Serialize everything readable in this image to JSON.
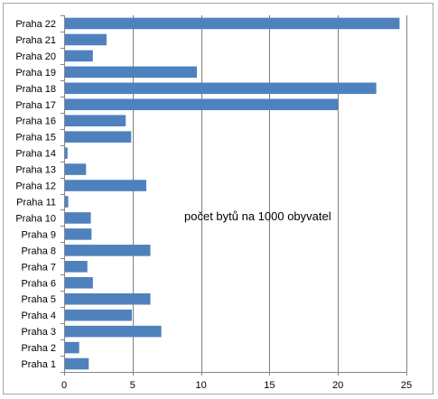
{
  "chart_data": {
    "type": "bar",
    "orientation": "horizontal",
    "categories": [
      "Praha 22",
      "Praha 21",
      "Praha 20",
      "Praha 19",
      "Praha 18",
      "Praha 17",
      "Praha 16",
      "Praha 15",
      "Praha 14",
      "Praha 13",
      "Praha 12",
      "Praha 11",
      "Praha 10",
      "Praha 9",
      "Praha 8",
      "Praha 7",
      "Praha 6",
      "Praha 5",
      "Praha 4",
      "Praha 3",
      "Praha 2",
      "Praha 1"
    ],
    "values": [
      24.5,
      3.1,
      2.1,
      9.7,
      22.8,
      20.0,
      4.5,
      4.9,
      0.25,
      1.6,
      6.0,
      0.3,
      1.95,
      2.0,
      6.3,
      1.7,
      2.1,
      6.3,
      4.95,
      7.1,
      1.1,
      1.8
    ],
    "annotation": "počet bytů na 1000 obyvatel",
    "xlim": [
      0,
      25
    ],
    "xticks": [
      0,
      5,
      10,
      15,
      20,
      25
    ],
    "grid": "vertical",
    "legend": "none",
    "colors": {
      "bar": "#4f81bd",
      "grid": "#7f7f7f",
      "frame": "#a6a6a6",
      "axis": "#868686"
    }
  }
}
